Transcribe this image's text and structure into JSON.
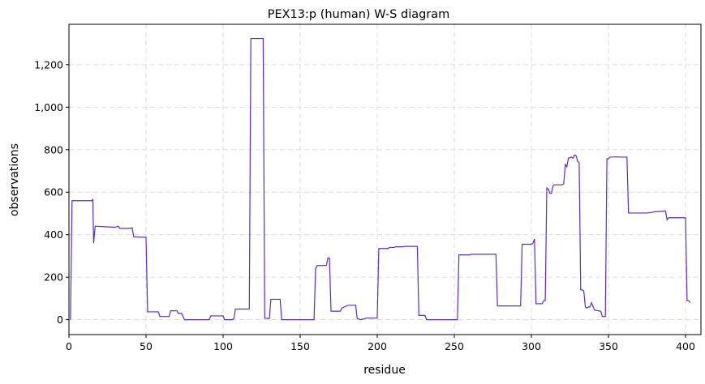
{
  "chart_data": {
    "type": "line",
    "title": "PEX13:p (human) W-S diagram",
    "xlabel": "residue",
    "ylabel": "observations",
    "xlim": [
      0,
      410
    ],
    "ylim": [
      -70,
      1390
    ],
    "xticks": [
      0,
      50,
      100,
      150,
      200,
      250,
      300,
      350,
      400
    ],
    "xtick_labels": [
      "0",
      "50",
      "100",
      "150",
      "200",
      "250",
      "300",
      "350",
      "400"
    ],
    "yticks": [
      0,
      200,
      400,
      600,
      800,
      1000,
      1200
    ],
    "ytick_labels": [
      "0",
      "200",
      "400",
      "600",
      "800",
      "1,000",
      "1,200"
    ],
    "grid": true,
    "line_color": "#5b2bd6",
    "series": [
      {
        "x": [
          1,
          2,
          15,
          15.5,
          16,
          17,
          30,
          32,
          33,
          35,
          40,
          41,
          42,
          49,
          50,
          51,
          58,
          59,
          65,
          66,
          70,
          71,
          73,
          75,
          76,
          91,
          92,
          100,
          101,
          106,
          107,
          108,
          117,
          118,
          126,
          127,
          130,
          131,
          137,
          138,
          158,
          159,
          160,
          161,
          165,
          166,
          167,
          168,
          169,
          170,
          175,
          176,
          177,
          181,
          186,
          187,
          188,
          189,
          192,
          193,
          200,
          201,
          207,
          208,
          211,
          212,
          217,
          218,
          226,
          227,
          231,
          232,
          252,
          253,
          260,
          261,
          277,
          278,
          293,
          294,
          300,
          301,
          302,
          303,
          304,
          305,
          307,
          308,
          309,
          310,
          311,
          312,
          313,
          314,
          315,
          316,
          320,
          321,
          322,
          323,
          324,
          326,
          327,
          328,
          329,
          330,
          331,
          332,
          333,
          334,
          335,
          336,
          337,
          338,
          339,
          341,
          345,
          346,
          348,
          349,
          350,
          351,
          355,
          360,
          362,
          363,
          370,
          375,
          378,
          380,
          385,
          386,
          387,
          388,
          389,
          396,
          397,
          398,
          400,
          401,
          402,
          403
        ],
        "y": [
          0,
          560,
          560,
          568,
          360,
          440,
          435,
          440,
          430,
          430,
          430,
          433,
          390,
          388,
          388,
          37,
          37,
          15,
          15,
          42,
          42,
          30,
          30,
          0,
          0,
          0,
          18,
          18,
          0,
          0,
          5,
          50,
          50,
          1323,
          1323,
          8,
          5,
          96,
          96,
          0,
          0,
          0,
          240,
          255,
          255,
          256,
          255,
          290,
          290,
          40,
          40,
          40,
          55,
          68,
          68,
          5,
          3,
          0,
          5,
          8,
          8,
          335,
          335,
          340,
          340,
          343,
          343,
          345,
          345,
          20,
          20,
          0,
          0,
          305,
          305,
          308,
          308,
          65,
          65,
          355,
          355,
          360,
          380,
          75,
          75,
          75,
          75,
          90,
          90,
          620,
          615,
          595,
          595,
          630,
          635,
          635,
          635,
          640,
          730,
          720,
          760,
          765,
          760,
          775,
          772,
          745,
          740,
          140,
          140,
          135,
          60,
          55,
          60,
          60,
          80,
          45,
          40,
          15,
          15,
          758,
          757,
          765,
          766,
          765,
          765,
          502,
          502,
          502,
          505,
          508,
          510,
          512,
          512,
          470,
          480,
          480,
          480,
          480,
          480,
          90,
          90,
          80
        ]
      }
    ]
  }
}
